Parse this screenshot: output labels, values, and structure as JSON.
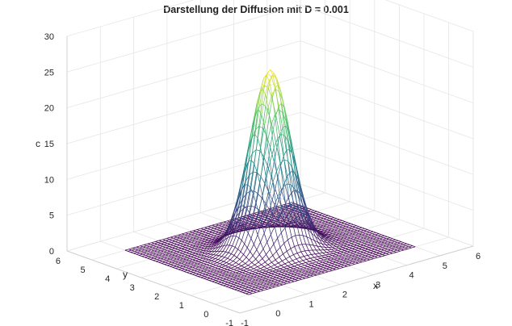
{
  "chart_data": {
    "type": "surface-mesh",
    "title": "Darstellung der Diffusion mit D = 0.001",
    "xlabel": "x",
    "ylabel": "y",
    "zlabel": "c",
    "xlim": [
      -1,
      6
    ],
    "ylim": [
      -1,
      6
    ],
    "zlim": [
      0,
      30
    ],
    "xticks": [
      "-1",
      "0",
      "1",
      "2",
      "3",
      "4",
      "5",
      "6"
    ],
    "yticks": [
      "-1",
      "0",
      "1",
      "2",
      "3",
      "4",
      "5",
      "6"
    ],
    "zticks": [
      "0",
      "5",
      "10",
      "15",
      "20",
      "25",
      "30"
    ],
    "grid": true,
    "colormap": "viridis",
    "surface": {
      "domain_x": [
        0,
        5
      ],
      "domain_y": [
        0,
        5
      ],
      "peak_center": [
        2.5,
        2.5
      ],
      "peak_value": 25,
      "mesh_lines": 45
    }
  }
}
